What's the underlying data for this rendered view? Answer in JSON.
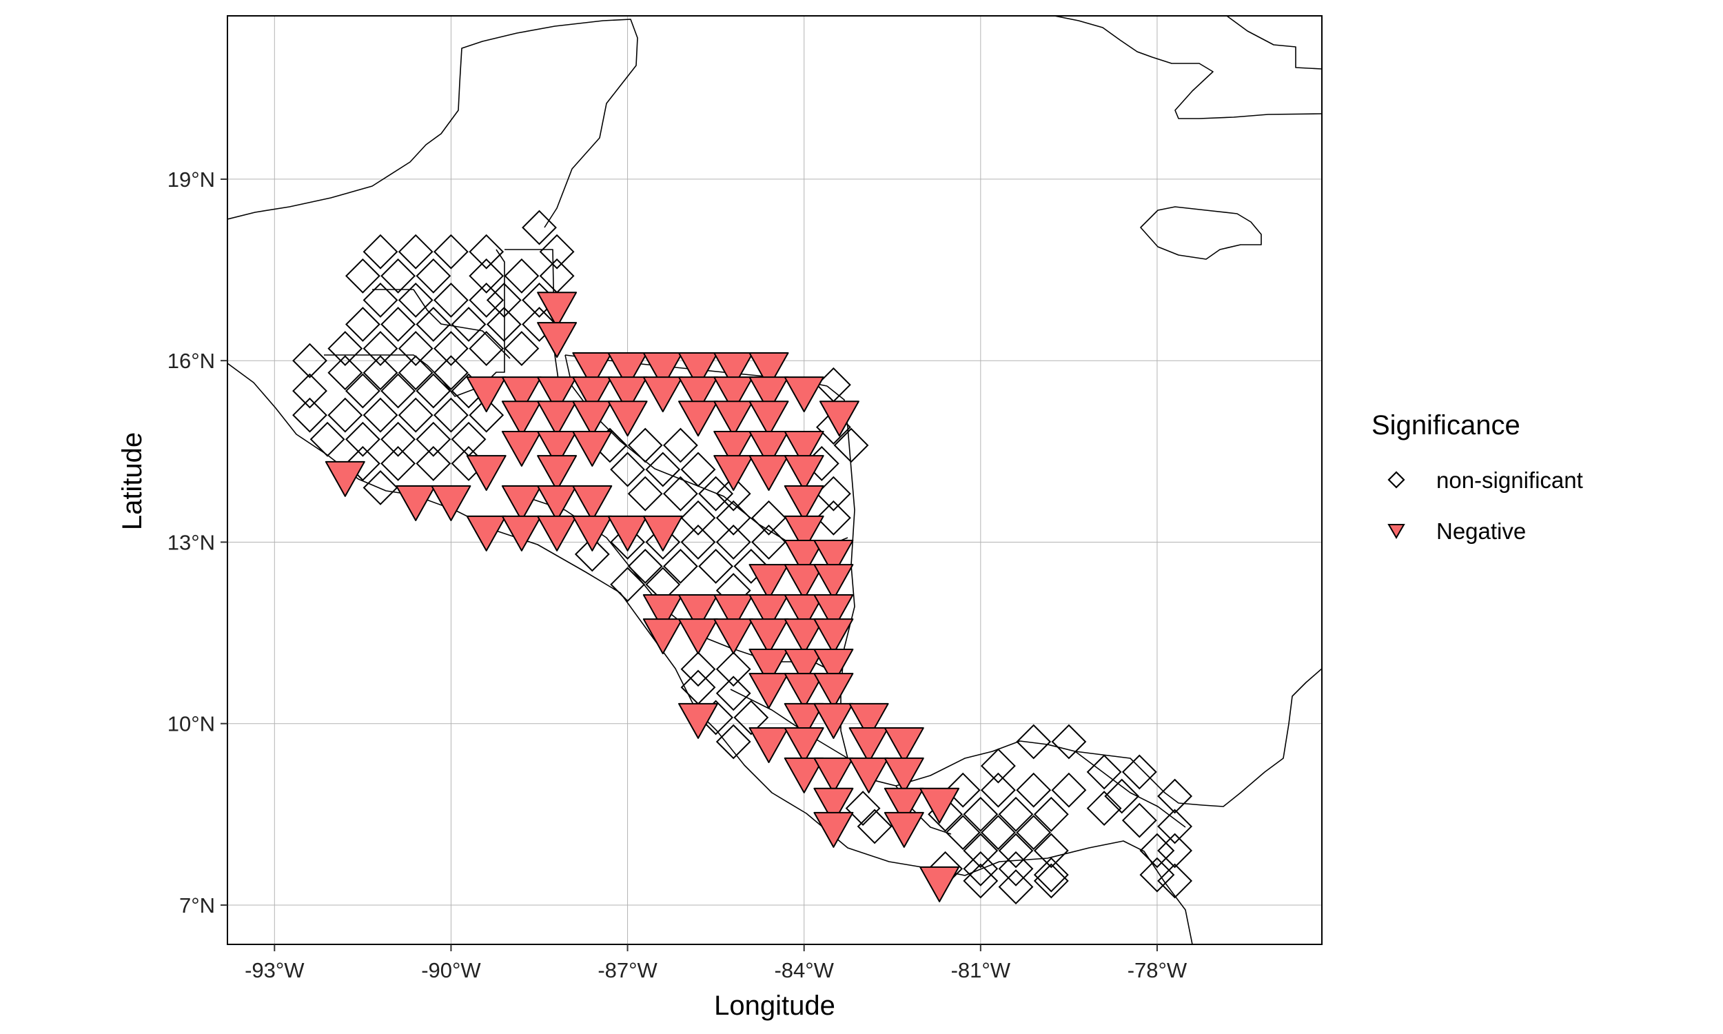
{
  "chart_data": {
    "type": "scatter",
    "subtype": "map",
    "xlabel": "Longitude",
    "ylabel": "Latitude",
    "x_ticks": [
      {
        "value": -93,
        "label": "-93°W"
      },
      {
        "value": -90,
        "label": "-90°W"
      },
      {
        "value": -87,
        "label": "-87°W"
      },
      {
        "value": -84,
        "label": "-84°W"
      },
      {
        "value": -81,
        "label": "-81°W"
      },
      {
        "value": -78,
        "label": "-78°W"
      }
    ],
    "y_ticks": [
      {
        "value": 7,
        "label": "7°N"
      },
      {
        "value": 10,
        "label": "10°N"
      },
      {
        "value": 13,
        "label": "13°N"
      },
      {
        "value": 16,
        "label": "16°N"
      },
      {
        "value": 19,
        "label": "19°N"
      }
    ],
    "xlim": [
      -93.8,
      -75.2
    ],
    "ylim": [
      6.35,
      21.7
    ],
    "grid": true,
    "legend": {
      "title": "Significance",
      "position": "right",
      "entries": [
        {
          "label": "non-significant",
          "shape": "diamond",
          "fill": "none"
        },
        {
          "label": "Negative",
          "shape": "triangle-down",
          "fill": "#f8696b"
        }
      ]
    },
    "colors": {
      "negative": "#f8696b",
      "outline": "#000000",
      "grid": "#b3b3b3"
    },
    "series": [
      {
        "name": "non-significant",
        "shape": "diamond",
        "points": [
          [
            -88.5,
            18.2
          ],
          [
            -88.2,
            17.8
          ],
          [
            -91.2,
            17.8
          ],
          [
            -90.6,
            17.8
          ],
          [
            -90.0,
            17.8
          ],
          [
            -89.4,
            17.8
          ],
          [
            -91.5,
            17.4
          ],
          [
            -90.9,
            17.4
          ],
          [
            -90.3,
            17.4
          ],
          [
            -89.4,
            17.4
          ],
          [
            -88.8,
            17.4
          ],
          [
            -88.2,
            17.4
          ],
          [
            -91.2,
            17.0
          ],
          [
            -90.6,
            17.0
          ],
          [
            -90.0,
            17.0
          ],
          [
            -89.4,
            17.0
          ],
          [
            -89.1,
            17.0
          ],
          [
            -88.5,
            17.0
          ],
          [
            -91.5,
            16.6
          ],
          [
            -90.9,
            16.6
          ],
          [
            -90.3,
            16.6
          ],
          [
            -89.7,
            16.6
          ],
          [
            -89.1,
            16.6
          ],
          [
            -88.5,
            16.6
          ],
          [
            -91.8,
            16.2
          ],
          [
            -91.2,
            16.2
          ],
          [
            -90.6,
            16.2
          ],
          [
            -90.0,
            16.2
          ],
          [
            -89.4,
            16.2
          ],
          [
            -88.8,
            16.2
          ],
          [
            -92.4,
            16.0
          ],
          [
            -91.8,
            15.8
          ],
          [
            -91.2,
            15.8
          ],
          [
            -90.6,
            15.8
          ],
          [
            -90.0,
            15.8
          ],
          [
            -92.4,
            15.5
          ],
          [
            -91.5,
            15.5
          ],
          [
            -90.9,
            15.5
          ],
          [
            -90.3,
            15.5
          ],
          [
            -89.7,
            15.5
          ],
          [
            -92.4,
            15.1
          ],
          [
            -91.8,
            15.1
          ],
          [
            -91.2,
            15.1
          ],
          [
            -90.6,
            15.1
          ],
          [
            -90.0,
            15.1
          ],
          [
            -89.4,
            15.1
          ],
          [
            -92.1,
            14.7
          ],
          [
            -91.5,
            14.7
          ],
          [
            -90.9,
            14.7
          ],
          [
            -90.3,
            14.7
          ],
          [
            -89.7,
            14.7
          ],
          [
            -91.5,
            14.3
          ],
          [
            -90.9,
            14.3
          ],
          [
            -90.3,
            14.3
          ],
          [
            -89.7,
            14.3
          ],
          [
            -91.2,
            13.9
          ],
          [
            -87.3,
            14.6
          ],
          [
            -86.7,
            14.6
          ],
          [
            -86.1,
            14.6
          ],
          [
            -87.0,
            14.2
          ],
          [
            -86.4,
            14.2
          ],
          [
            -85.8,
            14.2
          ],
          [
            -86.7,
            13.8
          ],
          [
            -86.1,
            13.8
          ],
          [
            -85.5,
            13.8
          ],
          [
            -85.2,
            13.8
          ],
          [
            -83.7,
            14.3
          ],
          [
            -83.5,
            13.8
          ],
          [
            -85.8,
            13.4
          ],
          [
            -85.2,
            13.4
          ],
          [
            -84.6,
            13.4
          ],
          [
            -83.5,
            13.4
          ],
          [
            -87.0,
            13.0
          ],
          [
            -86.4,
            13.0
          ],
          [
            -85.8,
            13.0
          ],
          [
            -85.2,
            13.0
          ],
          [
            -84.6,
            13.0
          ],
          [
            -87.6,
            12.8
          ],
          [
            -86.7,
            12.6
          ],
          [
            -86.1,
            12.6
          ],
          [
            -85.5,
            12.6
          ],
          [
            -84.9,
            12.6
          ],
          [
            -87.0,
            12.3
          ],
          [
            -86.4,
            12.3
          ],
          [
            -85.2,
            12.2
          ],
          [
            -85.8,
            10.9
          ],
          [
            -85.2,
            10.9
          ],
          [
            -85.8,
            10.6
          ],
          [
            -85.2,
            10.5
          ],
          [
            -85.5,
            10.1
          ],
          [
            -84.9,
            10.1
          ],
          [
            -85.2,
            9.7
          ],
          [
            -83.5,
            15.6
          ],
          [
            -83.2,
            14.6
          ],
          [
            -83.5,
            14.9
          ],
          [
            -80.1,
            9.7
          ],
          [
            -79.5,
            9.7
          ],
          [
            -80.7,
            9.3
          ],
          [
            -78.9,
            9.2
          ],
          [
            -78.3,
            9.2
          ],
          [
            -81.3,
            8.9
          ],
          [
            -80.7,
            8.9
          ],
          [
            -80.1,
            8.9
          ],
          [
            -79.5,
            8.9
          ],
          [
            -78.6,
            8.8
          ],
          [
            -77.7,
            8.8
          ],
          [
            -81.6,
            8.5
          ],
          [
            -81.0,
            8.5
          ],
          [
            -80.4,
            8.5
          ],
          [
            -79.8,
            8.5
          ],
          [
            -78.9,
            8.6
          ],
          [
            -78.3,
            8.4
          ],
          [
            -81.3,
            8.2
          ],
          [
            -80.7,
            8.2
          ],
          [
            -80.1,
            8.2
          ],
          [
            -77.7,
            8.3
          ],
          [
            -81.0,
            7.9
          ],
          [
            -80.4,
            7.9
          ],
          [
            -79.8,
            7.9
          ],
          [
            -78.0,
            7.9
          ],
          [
            -77.7,
            7.9
          ],
          [
            -81.6,
            7.6
          ],
          [
            -81.0,
            7.6
          ],
          [
            -80.4,
            7.6
          ],
          [
            -79.8,
            7.5
          ],
          [
            -78.0,
            7.5
          ],
          [
            -81.0,
            7.4
          ],
          [
            -80.4,
            7.3
          ],
          [
            -79.8,
            7.4
          ],
          [
            -77.7,
            7.4
          ],
          [
            -83.0,
            8.6
          ],
          [
            -82.8,
            8.3
          ]
        ]
      },
      {
        "name": "Negative",
        "shape": "triangle-down",
        "points": [
          [
            -88.2,
            16.9
          ],
          [
            -88.2,
            16.4
          ],
          [
            -87.6,
            15.9
          ],
          [
            -87.0,
            15.9
          ],
          [
            -86.4,
            15.9
          ],
          [
            -85.8,
            15.9
          ],
          [
            -85.2,
            15.9
          ],
          [
            -84.6,
            15.9
          ],
          [
            -89.4,
            15.5
          ],
          [
            -88.8,
            15.5
          ],
          [
            -88.2,
            15.5
          ],
          [
            -87.6,
            15.5
          ],
          [
            -87.0,
            15.5
          ],
          [
            -86.4,
            15.5
          ],
          [
            -85.8,
            15.5
          ],
          [
            -85.2,
            15.5
          ],
          [
            -84.6,
            15.5
          ],
          [
            -84.0,
            15.5
          ],
          [
            -88.8,
            15.1
          ],
          [
            -88.2,
            15.1
          ],
          [
            -87.6,
            15.1
          ],
          [
            -87.0,
            15.1
          ],
          [
            -85.8,
            15.1
          ],
          [
            -85.2,
            15.1
          ],
          [
            -84.6,
            15.1
          ],
          [
            -83.4,
            15.1
          ],
          [
            -88.8,
            14.6
          ],
          [
            -88.2,
            14.6
          ],
          [
            -87.6,
            14.6
          ],
          [
            -85.2,
            14.6
          ],
          [
            -84.6,
            14.6
          ],
          [
            -84.0,
            14.6
          ],
          [
            -89.4,
            14.2
          ],
          [
            -88.2,
            14.2
          ],
          [
            -85.2,
            14.2
          ],
          [
            -84.6,
            14.2
          ],
          [
            -84.0,
            14.2
          ],
          [
            -91.8,
            14.1
          ],
          [
            -90.6,
            13.7
          ],
          [
            -90.0,
            13.7
          ],
          [
            -88.8,
            13.7
          ],
          [
            -88.2,
            13.7
          ],
          [
            -87.6,
            13.7
          ],
          [
            -84.0,
            13.7
          ],
          [
            -89.4,
            13.2
          ],
          [
            -88.8,
            13.2
          ],
          [
            -88.2,
            13.2
          ],
          [
            -87.6,
            13.2
          ],
          [
            -87.0,
            13.2
          ],
          [
            -86.4,
            13.2
          ],
          [
            -84.0,
            13.2
          ],
          [
            -84.0,
            12.8
          ],
          [
            -83.5,
            12.8
          ],
          [
            -84.6,
            12.4
          ],
          [
            -84.0,
            12.4
          ],
          [
            -83.5,
            12.4
          ],
          [
            -86.4,
            11.9
          ],
          [
            -85.8,
            11.9
          ],
          [
            -85.2,
            11.9
          ],
          [
            -84.6,
            11.9
          ],
          [
            -84.0,
            11.9
          ],
          [
            -83.5,
            11.9
          ],
          [
            -86.4,
            11.5
          ],
          [
            -85.8,
            11.5
          ],
          [
            -85.2,
            11.5
          ],
          [
            -84.6,
            11.5
          ],
          [
            -84.0,
            11.5
          ],
          [
            -83.5,
            11.5
          ],
          [
            -84.6,
            11.0
          ],
          [
            -84.0,
            11.0
          ],
          [
            -83.5,
            11.0
          ],
          [
            -84.6,
            10.6
          ],
          [
            -84.0,
            10.6
          ],
          [
            -83.5,
            10.6
          ],
          [
            -85.8,
            10.1
          ],
          [
            -84.0,
            10.1
          ],
          [
            -83.5,
            10.1
          ],
          [
            -82.9,
            10.1
          ],
          [
            -84.6,
            9.7
          ],
          [
            -84.0,
            9.7
          ],
          [
            -82.9,
            9.7
          ],
          [
            -82.3,
            9.7
          ],
          [
            -84.0,
            9.2
          ],
          [
            -83.5,
            9.2
          ],
          [
            -82.9,
            9.2
          ],
          [
            -82.3,
            9.2
          ],
          [
            -83.5,
            8.7
          ],
          [
            -82.3,
            8.7
          ],
          [
            -81.7,
            8.7
          ],
          [
            -83.5,
            8.3
          ],
          [
            -82.3,
            8.3
          ],
          [
            -81.7,
            7.4
          ]
        ]
      }
    ]
  }
}
